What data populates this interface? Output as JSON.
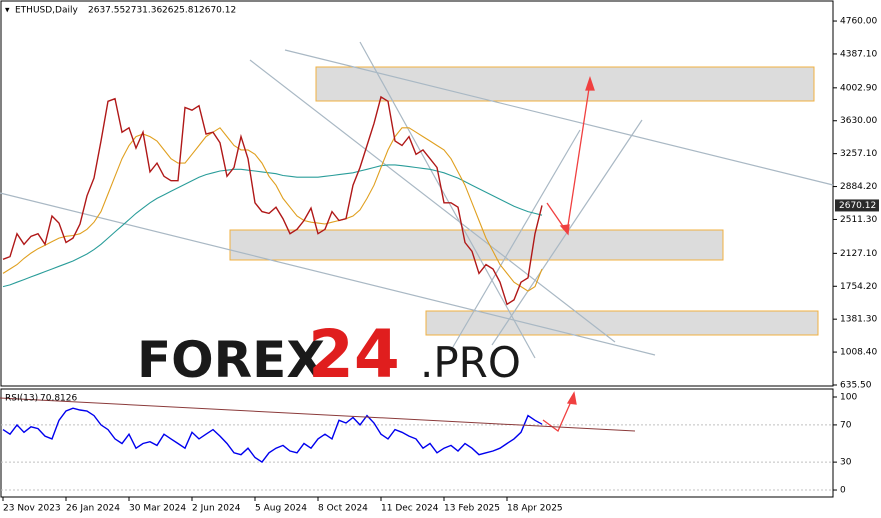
{
  "chart_data": [
    {
      "type": "line",
      "title": "ETHUSD,Daily",
      "ohlc": [
        2637.55,
        2731.36,
        2625.81,
        2670.12
      ],
      "last_price": 2670.12,
      "watermark": [
        "FOREX",
        "24",
        ".PRO"
      ],
      "categories": [
        "23 Nov 2023",
        null,
        null,
        null,
        null,
        null,
        null,
        null,
        null,
        "26 Jan 2024",
        null,
        null,
        null,
        null,
        null,
        null,
        null,
        null,
        "30 Mar 2024",
        null,
        null,
        null,
        null,
        null,
        null,
        null,
        null,
        "2 Jun 2024",
        null,
        null,
        null,
        null,
        null,
        null,
        null,
        null,
        "5 Aug 2024",
        null,
        null,
        null,
        null,
        null,
        null,
        null,
        null,
        "8 Oct 2024",
        null,
        null,
        null,
        null,
        null,
        null,
        null,
        null,
        "11 Dec 2024",
        null,
        null,
        null,
        null,
        null,
        null,
        null,
        null,
        "13 Feb 2025",
        null,
        null,
        null,
        null,
        null,
        null,
        null,
        null,
        "18 Apr 2025",
        null,
        null,
        null,
        null,
        null
      ],
      "series": [
        {
          "color": "#b01818",
          "values": [
            2060,
            2090,
            2350,
            2230,
            2320,
            2350,
            2230,
            2550,
            2470,
            2250,
            2300,
            2460,
            2780,
            2980,
            3400,
            3850,
            3880,
            3500,
            3550,
            3320,
            3500,
            3050,
            3150,
            3000,
            2950,
            2950,
            3780,
            3750,
            3800,
            3480,
            3500,
            3380,
            3000,
            3100,
            3450,
            3200,
            2700,
            2600,
            2580,
            2650,
            2520,
            2350,
            2400,
            2500,
            2640,
            2350,
            2400,
            2600,
            2500,
            2520,
            2900,
            3100,
            3350,
            3600,
            3900,
            3850,
            3400,
            3350,
            3450,
            3250,
            3300,
            3200,
            3100,
            2700,
            2700,
            2650,
            2250,
            2150,
            1900,
            2000,
            1950,
            1800,
            1550,
            1600,
            1800,
            1850,
            2350,
            2670.12
          ]
        },
        {
          "color": "#e0a020",
          "values": [
            1900,
            1950,
            2000,
            2070,
            2130,
            2180,
            2220,
            2260,
            2300,
            2320,
            2330,
            2350,
            2400,
            2480,
            2600,
            2800,
            3000,
            3200,
            3350,
            3450,
            3480,
            3450,
            3400,
            3300,
            3200,
            3150,
            3150,
            3250,
            3350,
            3450,
            3500,
            3550,
            3450,
            3350,
            3300,
            3300,
            3250,
            3150,
            3000,
            2900,
            2750,
            2650,
            2550,
            2500,
            2480,
            2470,
            2460,
            2480,
            2500,
            2520,
            2550,
            2620,
            2750,
            2900,
            3100,
            3300,
            3450,
            3550,
            3550,
            3500,
            3450,
            3400,
            3350,
            3300,
            3200,
            3050,
            2900,
            2700,
            2500,
            2300,
            2150,
            2000,
            1900,
            1800,
            1750,
            1700,
            1750,
            1950
          ]
        },
        {
          "color": "#2a9d9a",
          "values": [
            1750,
            1770,
            1800,
            1830,
            1860,
            1890,
            1920,
            1950,
            1980,
            2010,
            2040,
            2080,
            2120,
            2170,
            2230,
            2300,
            2370,
            2440,
            2510,
            2580,
            2640,
            2700,
            2750,
            2790,
            2830,
            2870,
            2910,
            2950,
            2990,
            3020,
            3040,
            3060,
            3070,
            3080,
            3080,
            3070,
            3060,
            3050,
            3040,
            3030,
            3010,
            3000,
            2990,
            2990,
            2990,
            2990,
            3000,
            3010,
            3020,
            3030,
            3040,
            3060,
            3080,
            3100,
            3120,
            3130,
            3130,
            3120,
            3110,
            3100,
            3090,
            3080,
            3060,
            3040,
            3010,
            2980,
            2940,
            2900,
            2860,
            2820,
            2780,
            2740,
            2700,
            2660,
            2630,
            2600,
            2580,
            2560
          ]
        }
      ],
      "ylim": [
        624,
        4987
      ],
      "yticks": [
        {
          "value": 635.5,
          "label": "635.50"
        },
        {
          "value": 1008.4,
          "label": "1008.40"
        },
        {
          "value": 1381.3,
          "label": "1381.30"
        },
        {
          "value": 1754.2,
          "label": "1754.20"
        },
        {
          "value": 2127.1,
          "label": "2127.10"
        },
        {
          "value": 2511.3,
          "label": "2511.30"
        },
        {
          "value": 2884.2,
          "label": "2884.20"
        },
        {
          "value": 3257.1,
          "label": "3257.10"
        },
        {
          "value": 3630,
          "label": "3630.00"
        },
        {
          "value": 4002.9,
          "label": "4002.90"
        },
        {
          "value": 4387.1,
          "label": "4387.10"
        },
        {
          "value": 4760,
          "label": "4760.00"
        }
      ],
      "grid": false
    },
    {
      "type": "line",
      "title": "RSI(13)",
      "last_value": 70.8126,
      "series": [
        {
          "color": "#0000ee",
          "values": [
            65,
            60,
            70,
            62,
            68,
            66,
            58,
            55,
            75,
            85,
            88,
            86,
            85,
            80,
            70,
            65,
            55,
            50,
            60,
            45,
            50,
            52,
            48,
            60,
            55,
            50,
            45,
            62,
            55,
            60,
            65,
            58,
            50,
            40,
            38,
            45,
            35,
            30,
            40,
            45,
            48,
            42,
            40,
            50,
            45,
            55,
            60,
            55,
            75,
            72,
            78,
            70,
            80,
            72,
            60,
            55,
            65,
            62,
            58,
            55,
            45,
            50,
            40,
            45,
            48,
            42,
            50,
            45,
            38,
            40,
            42,
            45,
            50,
            55,
            62,
            80,
            75,
            70.8126
          ]
        }
      ],
      "ylim": [
        -7.5,
        108.6
      ],
      "yticks": [
        0,
        30,
        70,
        100
      ],
      "grid": false
    }
  ]
}
